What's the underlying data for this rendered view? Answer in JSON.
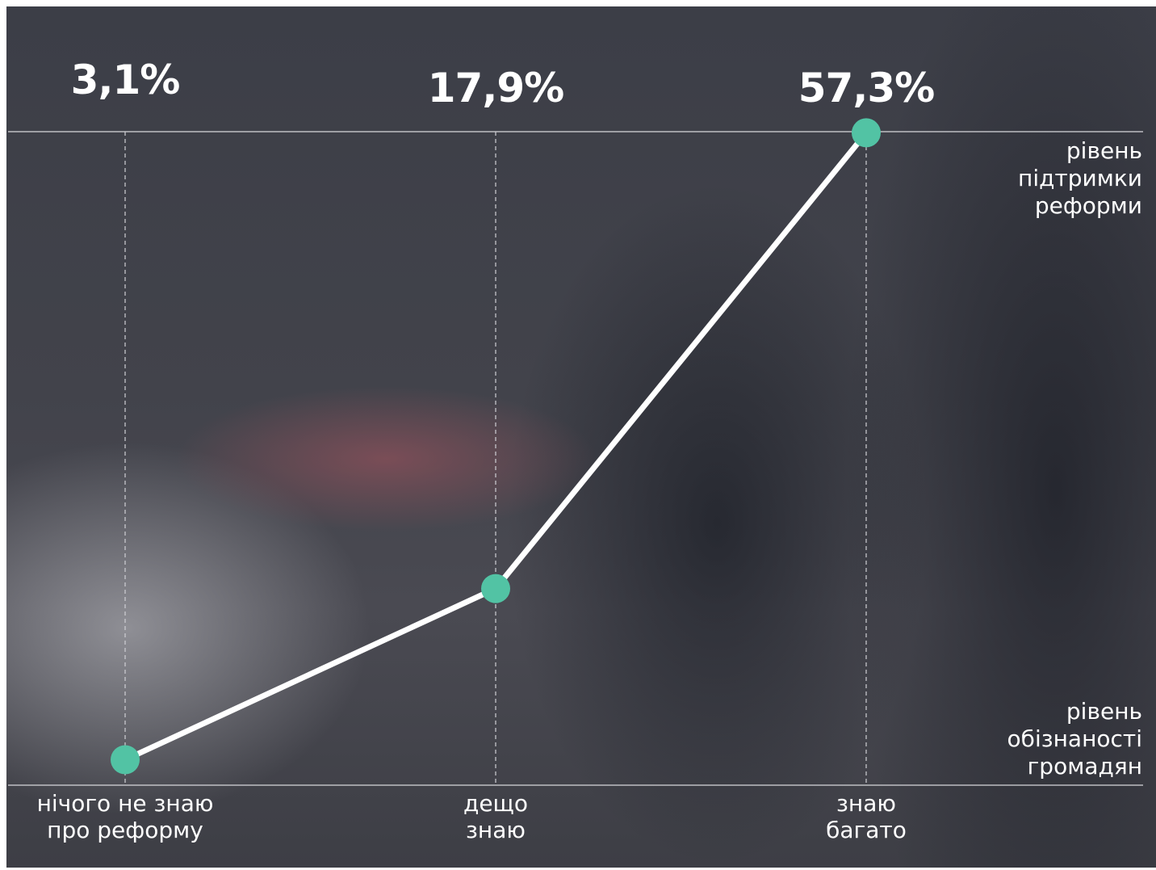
{
  "chart_data": {
    "type": "line",
    "categories": [
      "нічого не знаю\nпро реформу",
      "дещо\nзнаю",
      "знаю\nбагато"
    ],
    "series": [
      {
        "color": "#52c3a4",
        "values": [
          3.1,
          17.9,
          57.3
        ],
        "value_labels": [
          "3,1%",
          "17,9%",
          "57,3%"
        ]
      }
    ],
    "ylim": [
      0.9,
      57.4
    ],
    "y_label": "рівень\nпідтримки\nреформи",
    "x_label": "рівень\nобізнаності\nгромадян"
  }
}
